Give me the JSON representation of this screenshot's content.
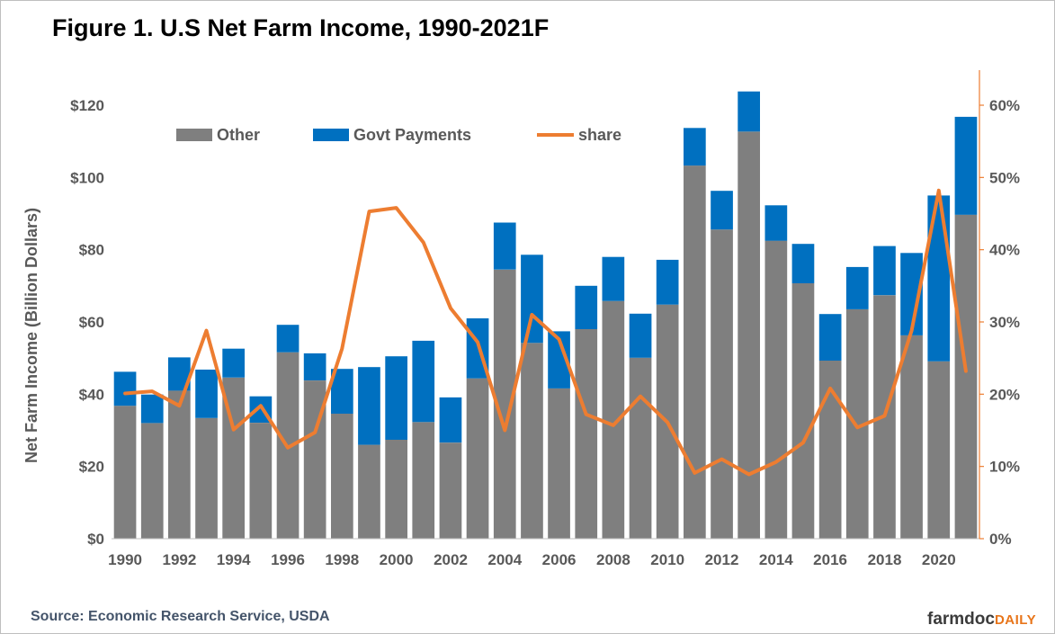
{
  "title": "Figure 1. U.S Net Farm Income, 1990-2021F",
  "source": "Source: Economic Research Service, USDA",
  "brand": {
    "part1": "farmdoc",
    "part2": "DAILY"
  },
  "colors": {
    "other": "#7f7f7f",
    "govt": "#0070c0",
    "share": "#ed7d31",
    "axis_right": "#ed7d31",
    "tick_text": "#595959"
  },
  "chart_data": {
    "type": "bar",
    "stacked": true,
    "ylabel": "Net Farm Income (Billion Dollars)",
    "y_left": {
      "min": 0,
      "max": 120,
      "step": 20,
      "tick_labels": [
        "$0",
        "$20",
        "$40",
        "$60",
        "$80",
        "$100",
        "$120"
      ]
    },
    "y_right": {
      "min": 0,
      "max": 0.6,
      "step": 0.1,
      "tick_labels": [
        "0%",
        "10%",
        "20%",
        "30%",
        "40%",
        "50%",
        "60%"
      ]
    },
    "x_tick_labels": [
      "1990",
      "1992",
      "1994",
      "1996",
      "1998",
      "2000",
      "2002",
      "2004",
      "2006",
      "2008",
      "2010",
      "2012",
      "2014",
      "2016",
      "2018",
      "2020"
    ],
    "categories": [
      1990,
      1991,
      1992,
      1993,
      1994,
      1995,
      1996,
      1997,
      1998,
      1999,
      2000,
      2001,
      2002,
      2003,
      2004,
      2005,
      2006,
      2007,
      2008,
      2009,
      2010,
      2011,
      2012,
      2013,
      2014,
      2015,
      2016,
      2017,
      2018,
      2019,
      2020,
      2021
    ],
    "legend": [
      "Other",
      "Govt Payments",
      "share"
    ],
    "legend_position": "top-left",
    "series": [
      {
        "name": "Other",
        "type": "bar",
        "axis": "left",
        "values": [
          36.8,
          32.0,
          41.0,
          33.4,
          44.6,
          32.1,
          51.6,
          43.8,
          34.6,
          26.0,
          27.4,
          32.3,
          26.6,
          44.4,
          74.5,
          54.2,
          41.6,
          58.0,
          65.8,
          50.1,
          64.8,
          103.3,
          85.6,
          112.7,
          82.5,
          70.7,
          49.3,
          63.5,
          67.4,
          56.3,
          49.1,
          89.7
        ]
      },
      {
        "name": "Govt Payments",
        "type": "bar",
        "axis": "left",
        "values": [
          9.4,
          7.9,
          9.2,
          13.4,
          8.0,
          7.3,
          7.6,
          7.5,
          12.4,
          21.5,
          23.1,
          22.5,
          12.5,
          16.6,
          13.0,
          24.4,
          15.8,
          12.0,
          12.2,
          12.2,
          12.4,
          10.4,
          10.7,
          11.1,
          9.8,
          10.9,
          12.9,
          11.7,
          13.6,
          22.8,
          45.9,
          27.1
        ]
      },
      {
        "name": "share",
        "type": "line",
        "axis": "right",
        "values": [
          0.201,
          0.204,
          0.184,
          0.288,
          0.151,
          0.184,
          0.126,
          0.147,
          0.263,
          0.453,
          0.458,
          0.41,
          0.319,
          0.272,
          0.15,
          0.31,
          0.276,
          0.172,
          0.157,
          0.197,
          0.161,
          0.091,
          0.11,
          0.089,
          0.106,
          0.133,
          0.208,
          0.154,
          0.17,
          0.288,
          0.482,
          0.232
        ]
      }
    ]
  }
}
